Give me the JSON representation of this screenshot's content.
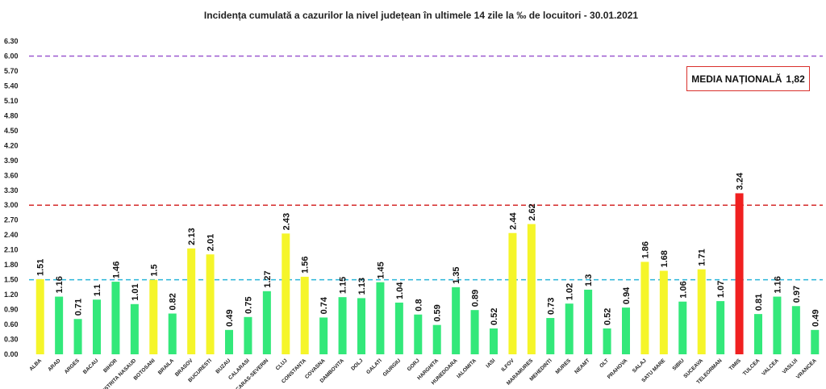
{
  "chart_data": {
    "type": "bar",
    "title": "Incidența cumulată a cazurilor la nivel județean în ultimele 14 zile la ‰ de locuitori - 30.01.2021",
    "xlabel": "",
    "ylabel": "",
    "ylim": [
      0,
      6.3
    ],
    "yticks": [
      "0.00",
      "0.30",
      "0.60",
      "0.90",
      "1.20",
      "1.50",
      "1.80",
      "2.10",
      "2.40",
      "2.70",
      "3.00",
      "3.30",
      "3.60",
      "3.90",
      "4.20",
      "4.50",
      "4.80",
      "5.10",
      "5.40",
      "5.70",
      "6.00",
      "6.30"
    ],
    "grid": false,
    "categories": [
      "ALBA",
      "ARAD",
      "ARGES",
      "BACAU",
      "BIHOR",
      "BISTRITA NASAUD",
      "BOTOSANI",
      "BRAILA",
      "BRASOV",
      "BUCURESTI",
      "BUZAU",
      "CALARASI",
      "CARAS-SEVERIN",
      "CLUJ",
      "CONSTANTA",
      "COVASNA",
      "DAMBOVITA",
      "DOLJ",
      "GALATI",
      "GIURGIU",
      "GORJ",
      "HARGHITA",
      "HUNEDOARA",
      "IALOMITA",
      "IASI",
      "ILFOV",
      "MARAMURES",
      "MEHEDINTI",
      "MURES",
      "NEAMT",
      "OLT",
      "PRAHOVA",
      "SALAJ",
      "SATU MARE",
      "SIBIU",
      "SUCEAVA",
      "TELEORMAN",
      "TIMIS",
      "TULCEA",
      "VALCEA",
      "VASLUI",
      "VRANCEA"
    ],
    "values": [
      1.51,
      1.16,
      0.71,
      1.1,
      1.46,
      1.01,
      1.5,
      0.82,
      2.13,
      2.01,
      0.49,
      0.75,
      1.27,
      2.43,
      1.56,
      0.74,
      1.15,
      1.13,
      1.45,
      1.04,
      0.8,
      0.59,
      1.35,
      0.89,
      0.52,
      2.44,
      2.62,
      0.73,
      1.02,
      1.3,
      0.52,
      0.94,
      1.86,
      1.68,
      1.06,
      1.71,
      1.07,
      3.24,
      0.81,
      1.16,
      0.97,
      0.49
    ],
    "value_labels": [
      "1.51",
      "1.16",
      "0.71",
      "1.1",
      "1.46",
      "1.01",
      "1.5",
      "0.82",
      "2.13",
      "2.01",
      "0.49",
      "0.75",
      "1.27",
      "2.43",
      "1.56",
      "0.74",
      "1.15",
      "1.13",
      "1.45",
      "1.04",
      "0.8",
      "0.59",
      "1.35",
      "0.89",
      "0.52",
      "2.44",
      "2.62",
      "0.73",
      "1.02",
      "1.3",
      "0.52",
      "0.94",
      "1.86",
      "1.68",
      "1.06",
      "1.71",
      "1.07",
      "3.24",
      "0.81",
      "1.16",
      "0.97",
      "0.49"
    ],
    "thresholds": [
      {
        "value": 1.5,
        "color": "#2bb5d9",
        "style": "dashed"
      },
      {
        "value": 3.0,
        "color": "#d42a2a",
        "style": "dashed"
      },
      {
        "value": 6.0,
        "color": "#9b59d0",
        "style": "dashed"
      }
    ],
    "colors": {
      "low": "#33e87a",
      "mid": "#f5f52a",
      "high": "#f02020"
    },
    "annotation": {
      "label": "MEDIA NAȚIONALĂ",
      "value": "1,82"
    }
  }
}
